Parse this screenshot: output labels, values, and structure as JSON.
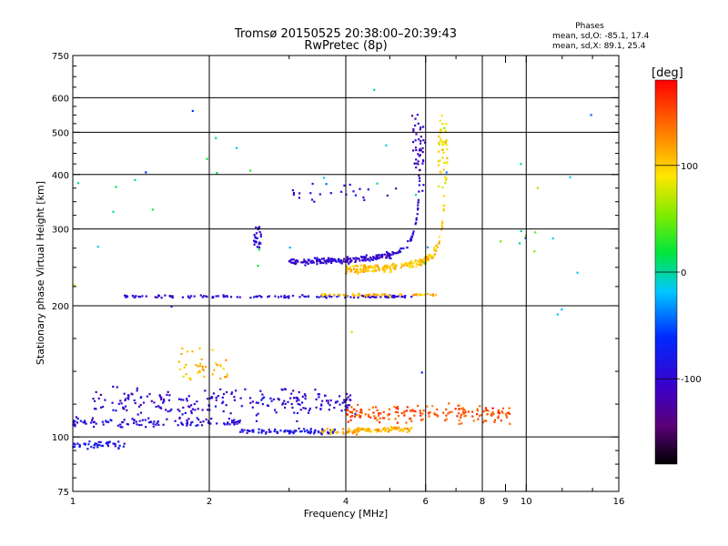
{
  "chart_data": {
    "type": "scatter",
    "title": "Tromsø 20150525 20:38:00–20:39:43",
    "subtitle": "RwPretec (8p)",
    "xlabel": "Frequency [MHz]",
    "ylabel": "Stationary phase Virtual Height [km]",
    "x_scale": "log",
    "y_scale": "log",
    "xlim": [
      1,
      16
    ],
    "ylim": [
      75,
      750
    ],
    "x_ticks": [
      1,
      2,
      4,
      6,
      8,
      9,
      10,
      16
    ],
    "x_tick_labels": [
      "1",
      "2",
      "4",
      "6",
      "8",
      "9",
      "10",
      "16"
    ],
    "x_minor_ticks": [
      3,
      5,
      7,
      12,
      14
    ],
    "x_grid": [
      2,
      4,
      6,
      8,
      10
    ],
    "y_ticks": [
      75,
      100,
      200,
      300,
      400,
      500,
      600,
      750
    ],
    "y_tick_labels": [
      "75",
      "100",
      "200",
      "300",
      "400",
      "500",
      "600",
      "750"
    ],
    "y_grid": [
      100,
      200,
      300,
      400,
      500,
      600
    ],
    "grid": true,
    "info_box": {
      "heading": "Phases",
      "line_o": "mean, sd,O: -85.1, 17.4",
      "line_x": "mean, sd,X:  89.1, 25.4"
    },
    "colorbar": {
      "label": "[deg]",
      "min": -180,
      "max": 180,
      "ticks": [
        100,
        0,
        -100
      ],
      "tick_labels": [
        "100",
        "0",
        "-100"
      ]
    },
    "traces": [
      {
        "kind": "band",
        "f_min": 1.0,
        "f_max": 1.3,
        "h": 96,
        "spread": 3,
        "phase": -85,
        "count": 45
      },
      {
        "kind": "band",
        "f_min": 1.0,
        "f_max": 2.4,
        "h": 108,
        "spread": 4,
        "phase": -95,
        "count": 110
      },
      {
        "kind": "band",
        "f_min": 1.1,
        "f_max": 4.2,
        "h": 120,
        "spread": 14,
        "phase": -100,
        "count": 230
      },
      {
        "kind": "band",
        "f_min": 2.3,
        "f_max": 3.8,
        "h": 103,
        "spread": 2,
        "phase": -85,
        "count": 80
      },
      {
        "kind": "band",
        "f_min": 3.5,
        "f_max": 4.3,
        "h": 103,
        "spread": 2,
        "phase": 110,
        "count": 30
      },
      {
        "kind": "band",
        "f_min": 4.2,
        "f_max": 5.6,
        "h": 104,
        "spread": 2,
        "phase": 110,
        "count": 80
      },
      {
        "kind": "band",
        "f_min": 4.0,
        "f_max": 9.2,
        "h": 113,
        "spread": 8,
        "phase": 150,
        "count": 180
      },
      {
        "kind": "band",
        "f_min": 1.3,
        "f_max": 5.6,
        "h": 210,
        "spread": 2,
        "phase": -95,
        "count": 130
      },
      {
        "kind": "band",
        "f_min": 3.4,
        "f_max": 6.4,
        "h": 212,
        "spread": 2,
        "phase": 110,
        "count": 60
      },
      {
        "kind": "band",
        "f_min": 3.0,
        "f_max": 6.2,
        "h": 365,
        "spread": 30,
        "phase": -100,
        "count": 25
      },
      {
        "kind": "band",
        "f_min": 2.5,
        "f_max": 2.6,
        "h": 290,
        "spread": 25,
        "phase": -95,
        "count": 25
      },
      {
        "kind": "band",
        "f_min": 1.7,
        "f_max": 2.2,
        "h": 145,
        "spread": 20,
        "phase": 110,
        "count": 40
      },
      {
        "kind": "curve",
        "f_min": 3.0,
        "f_max": 5.85,
        "fc": 5.9,
        "h0": 248,
        "k": 12,
        "phase": -100,
        "spread": 6,
        "count": 220
      },
      {
        "kind": "curve",
        "f_min": 4.0,
        "f_max": 6.6,
        "fc": 6.7,
        "h0": 238,
        "k": 12,
        "phase": 105,
        "spread": 8,
        "count": 200
      },
      {
        "kind": "band",
        "f_min": 6.4,
        "f_max": 6.7,
        "h": 450,
        "spread": 120,
        "phase": 90,
        "count": 50
      },
      {
        "kind": "band",
        "f_min": 5.6,
        "f_max": 6.0,
        "h": 470,
        "spread": 110,
        "phase": -110,
        "count": 40
      },
      {
        "kind": "band",
        "f_min": 1.0,
        "f_max": 15.0,
        "h": 350,
        "spread": 300,
        "phase": 0,
        "count": 45
      }
    ]
  }
}
